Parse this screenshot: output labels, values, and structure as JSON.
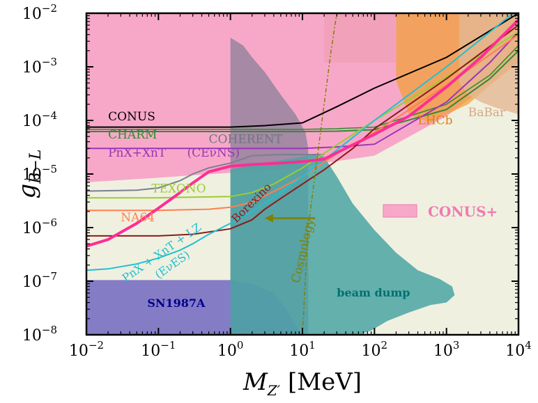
{
  "chart_data": {
    "type": "line",
    "xscale": "log",
    "yscale": "log",
    "xlim": [
      0.01,
      10000
    ],
    "ylim": [
      1e-08,
      0.01
    ],
    "xlabel": "M_{Z'} [MeV]",
    "ylabel": "g_{B-L}",
    "x_ticks": [
      {
        "value": 0.01,
        "base": "10",
        "exp": "−2"
      },
      {
        "value": 0.1,
        "base": "10",
        "exp": "−1"
      },
      {
        "value": 1,
        "base": "10",
        "exp": "0"
      },
      {
        "value": 10,
        "base": "10",
        "exp": "1"
      },
      {
        "value": 100,
        "base": "10",
        "exp": "2"
      },
      {
        "value": 1000,
        "base": "10",
        "exp": "3"
      },
      {
        "value": 10000,
        "base": "10",
        "exp": "4"
      }
    ],
    "y_ticks": [
      {
        "value": 1e-08,
        "base": "10",
        "exp": "−8"
      },
      {
        "value": 1e-07,
        "base": "10",
        "exp": "−7"
      },
      {
        "value": 1e-06,
        "base": "10",
        "exp": "−6"
      },
      {
        "value": 1e-05,
        "base": "10",
        "exp": "−5"
      },
      {
        "value": 0.0001,
        "base": "10",
        "exp": "−4"
      },
      {
        "value": 0.001,
        "base": "10",
        "exp": "−3"
      },
      {
        "value": 0.01,
        "base": "10",
        "exp": "−2"
      }
    ],
    "regions": [
      {
        "name": "excluded",
        "color": "#f0f0e0",
        "opacity": 1,
        "points": [
          [
            0.01,
            1e-08
          ],
          [
            10000,
            1e-08
          ],
          [
            10000,
            0.01
          ],
          [
            0.01,
            0.01
          ]
        ]
      },
      {
        "name": "pink-excluded",
        "color": "#f7a8c8",
        "opacity": 1,
        "points": [
          [
            0.01,
            0.01
          ],
          [
            10000,
            0.01
          ],
          [
            10000,
            0.0012
          ],
          [
            1000,
            0.00012
          ],
          [
            100,
            2.2e-05
          ],
          [
            20,
            1.6e-05
          ],
          [
            10,
            1.3e-05
          ],
          [
            3,
            1.15e-05
          ],
          [
            1,
            1.05e-05
          ],
          [
            0.3,
            9.5e-06
          ],
          [
            0.1,
            8.5e-06
          ],
          [
            0.01,
            7e-06
          ]
        ]
      },
      {
        "name": "coherent",
        "color": "#8a7f9a",
        "opacity": 0.75,
        "points": [
          [
            1,
            1e-08
          ],
          [
            1,
            0.0035
          ],
          [
            1.5,
            0.0025
          ],
          [
            2,
            0.0015
          ],
          [
            3,
            0.0008
          ],
          [
            5,
            0.0003
          ],
          [
            8,
            0.00013
          ],
          [
            11,
            6e-05
          ],
          [
            12,
            3e-05
          ],
          [
            12,
            1e-08
          ]
        ]
      },
      {
        "name": "sn1987a",
        "color": "#7b72c2",
        "opacity": 0.92,
        "points": [
          [
            0.01,
            1e-08
          ],
          [
            0.01,
            1.05e-07
          ],
          [
            1,
            1.05e-07
          ],
          [
            2,
            9e-08
          ],
          [
            4,
            6e-08
          ],
          [
            6,
            3e-08
          ],
          [
            8,
            1.5e-08
          ],
          [
            10,
            1e-08
          ]
        ]
      },
      {
        "name": "beam-dump",
        "color": "#4aa5a3",
        "opacity": 0.85,
        "points": [
          [
            1,
            1e-08
          ],
          [
            1,
            1.2e-05
          ],
          [
            2,
            1.5e-05
          ],
          [
            5,
            1.8e-05
          ],
          [
            10,
            2.1e-05
          ],
          [
            15,
            2.4e-05
          ],
          [
            20,
            2.1e-05
          ],
          [
            30,
            9e-06
          ],
          [
            50,
            2.8e-06
          ],
          [
            100,
            9e-07
          ],
          [
            200,
            3.4e-07
          ],
          [
            400,
            1.6e-07
          ],
          [
            800,
            1.1e-07
          ],
          [
            1200,
            8e-08
          ],
          [
            1300,
            5.5e-08
          ],
          [
            1000,
            4e-08
          ],
          [
            600,
            3.6e-08
          ],
          [
            300,
            2.6e-08
          ],
          [
            150,
            1.8e-08
          ],
          [
            90,
            1.2e-08
          ],
          [
            60,
            1e-08
          ]
        ]
      },
      {
        "name": "lhcb",
        "color": "#f0a030",
        "opacity": 0.7,
        "points": [
          [
            200,
            0.01
          ],
          [
            10000,
            0.01
          ],
          [
            10000,
            0.0012
          ],
          [
            4000,
            0.00045
          ],
          [
            2000,
            0.0002
          ],
          [
            1000,
            0.00013
          ],
          [
            600,
            9e-05
          ],
          [
            300,
            0.00013
          ],
          [
            200,
            0.00055
          ]
        ]
      },
      {
        "name": "babar",
        "color": "#e3b892",
        "opacity": 0.8,
        "points": [
          [
            1500,
            0.01
          ],
          [
            10000,
            0.01
          ],
          [
            10000,
            0.00013
          ],
          [
            7000,
            0.00015
          ],
          [
            5000,
            0.00017
          ],
          [
            3000,
            0.00022
          ],
          [
            2000,
            0.0003
          ],
          [
            1500,
            0.0005
          ]
        ]
      },
      {
        "name": "upper-pink-band",
        "color": "#f0a0b8",
        "opacity": 0.9,
        "points": [
          [
            20,
            0.01
          ],
          [
            200,
            0.01
          ],
          [
            200,
            0.0012
          ],
          [
            100,
            0.0012
          ],
          [
            50,
            0.0012
          ],
          [
            20,
            0.0012
          ]
        ]
      }
    ],
    "series": [
      {
        "name": "CONUS",
        "color": "#000000",
        "width": 2,
        "points": [
          [
            0.01,
            7.5e-05
          ],
          [
            0.1,
            7.5e-05
          ],
          [
            1,
            7.5e-05
          ],
          [
            3,
            8e-05
          ],
          [
            10,
            9e-05
          ],
          [
            30,
            0.00018
          ],
          [
            100,
            0.0004
          ],
          [
            1000,
            0.0015
          ],
          [
            10000,
            0.01
          ]
        ]
      },
      {
        "name": "CHARM",
        "color": "#2e8b2e",
        "width": 2,
        "points": [
          [
            0.01,
            6.2e-05
          ],
          [
            0.1,
            6.2e-05
          ],
          [
            1,
            6.2e-05
          ],
          [
            10,
            6.2e-05
          ],
          [
            30,
            6.3e-05
          ],
          [
            100,
            6.7e-05
          ],
          [
            1000,
            0.00016
          ],
          [
            4000,
            0.0006
          ],
          [
            10000,
            0.002
          ]
        ]
      },
      {
        "name": "CHARM-2",
        "color": "#2e8b2e",
        "width": 1.5,
        "points": [
          [
            0.01,
            6.8e-05
          ],
          [
            0.1,
            6.8e-05
          ],
          [
            1,
            6.8e-05
          ],
          [
            10,
            6.8e-05
          ],
          [
            30,
            7e-05
          ],
          [
            100,
            7.5e-05
          ],
          [
            1000,
            0.0002
          ],
          [
            4000,
            0.0007
          ],
          [
            10000,
            0.0025
          ]
        ]
      },
      {
        "name": "PnX+XnT",
        "color": "#9b35b8",
        "width": 2,
        "points": [
          [
            0.01,
            3e-05
          ],
          [
            0.1,
            3e-05
          ],
          [
            1,
            3e-05
          ],
          [
            10,
            3e-05
          ],
          [
            30,
            3.2e-05
          ],
          [
            100,
            3.6e-05
          ],
          [
            1000,
            0.00022
          ],
          [
            4000,
            0.0012
          ],
          [
            10000,
            0.0045
          ]
        ]
      },
      {
        "name": "COHERENT",
        "color": "#7a7f90",
        "width": 2,
        "points": [
          [
            0.01,
            4.8e-06
          ],
          [
            0.05,
            5e-06
          ],
          [
            0.1,
            5.5e-06
          ],
          [
            0.2,
            7.5e-06
          ],
          [
            0.3,
            1e-05
          ],
          [
            0.5,
            1.3e-05
          ],
          [
            1,
            1.6e-05
          ],
          [
            2,
            2.2e-05
          ],
          [
            5,
            2.3e-05
          ],
          [
            10,
            2.3e-05
          ],
          [
            20,
            2.3e-05
          ]
        ]
      },
      {
        "name": "TEXONO",
        "color": "#9acd32",
        "width": 2,
        "points": [
          [
            0.01,
            3.6e-06
          ],
          [
            0.1,
            3.6e-06
          ],
          [
            0.3,
            3.7e-06
          ],
          [
            1,
            3.8e-06
          ],
          [
            2,
            4.5e-06
          ],
          [
            4,
            6.5e-06
          ],
          [
            10,
            1.3e-05
          ],
          [
            30,
            3.5e-05
          ],
          [
            100,
            0.0001
          ],
          [
            1000,
            0.00065
          ],
          [
            10000,
            0.0045
          ]
        ]
      },
      {
        "name": "NA64",
        "color": "#ff7f50",
        "width": 2,
        "points": [
          [
            0.01,
            2.1e-06
          ],
          [
            0.1,
            2.1e-06
          ],
          [
            0.5,
            2.2e-06
          ],
          [
            1,
            2.4e-06
          ],
          [
            2,
            3e-06
          ],
          [
            5,
            5.5e-06
          ],
          [
            10,
            9e-06
          ],
          [
            30,
            2.4e-05
          ],
          [
            100,
            6e-05
          ],
          [
            1000,
            0.00045
          ],
          [
            10000,
            0.004
          ]
        ]
      },
      {
        "name": "Borexino",
        "color": "#8b1a1a",
        "width": 2,
        "points": [
          [
            0.01,
            7e-07
          ],
          [
            0.1,
            7e-07
          ],
          [
            0.3,
            7.5e-07
          ],
          [
            1,
            9.5e-07
          ],
          [
            2,
            1.4e-06
          ],
          [
            3,
            2.2e-06
          ],
          [
            5,
            3.5e-06
          ],
          [
            10,
            6.5e-06
          ],
          [
            20,
            1.2e-05
          ],
          [
            50,
            3e-05
          ],
          [
            100,
            7e-05
          ],
          [
            1000,
            0.0006
          ],
          [
            10000,
            0.006
          ]
        ]
      },
      {
        "name": "PnX+XnT+LZ",
        "color": "#20c0d0",
        "width": 2,
        "points": [
          [
            0.01,
            1.6e-07
          ],
          [
            0.02,
            1.7e-07
          ],
          [
            0.05,
            2.1e-07
          ],
          [
            0.1,
            2.7e-07
          ],
          [
            0.2,
            3.8e-07
          ],
          [
            0.3,
            5e-07
          ],
          [
            0.5,
            7.5e-07
          ],
          [
            1,
            1.2e-06
          ],
          [
            2,
            2e-06
          ],
          [
            5,
            4.5e-06
          ],
          [
            10,
            9e-06
          ],
          [
            30,
            2.8e-05
          ],
          [
            100,
            0.0001
          ],
          [
            1000,
            0.001
          ],
          [
            10000,
            0.012
          ]
        ]
      },
      {
        "name": "CONUS+",
        "color": "#ff2d95",
        "width": 4,
        "points": [
          [
            0.01,
            4.5e-07
          ],
          [
            0.02,
            6e-07
          ],
          [
            0.05,
            1.2e-06
          ],
          [
            0.1,
            2.3e-06
          ],
          [
            0.2,
            4.5e-06
          ],
          [
            0.3,
            6.8e-06
          ],
          [
            0.5,
            1.1e-05
          ],
          [
            1,
            1.4e-05
          ],
          [
            2,
            1.5e-05
          ],
          [
            5,
            1.6e-05
          ],
          [
            10,
            1.7e-05
          ],
          [
            20,
            1.9e-05
          ],
          [
            50,
            3.5e-05
          ],
          [
            100,
            5.5e-05
          ],
          [
            300,
            0.00012
          ],
          [
            1000,
            0.00042
          ],
          [
            3000,
            0.0015
          ],
          [
            10000,
            0.0075
          ]
        ]
      },
      {
        "name": "Cosmology",
        "color": "#808000",
        "width": 1.5,
        "dash": "6,3,2,3",
        "points": [
          [
            10,
            1e-08
          ],
          [
            12,
            1e-06
          ],
          [
            15,
            1e-05
          ],
          [
            20,
            0.0002
          ],
          [
            25,
            0.002
          ],
          [
            30,
            0.01
          ]
        ]
      }
    ],
    "texts": [
      {
        "name": "label-conus",
        "text": "CONUS",
        "color": "#000000",
        "x": 0.02,
        "y": 0.0001,
        "size": 17
      },
      {
        "name": "label-charm",
        "text": "CHARM",
        "color": "#2e8b2e",
        "x": 0.02,
        "y": 4.6e-05,
        "size": 17
      },
      {
        "name": "label-pnx-xnt",
        "text": "PnX+XnT",
        "color": "#9b35b8",
        "x": 0.02,
        "y": 2.1e-05,
        "size": 17
      },
      {
        "name": "label-cevns",
        "text": "(CEνNS)",
        "color": "#9b35b8",
        "x": 0.25,
        "y": 2.1e-05,
        "size": 17
      },
      {
        "name": "label-coherent",
        "text": "COHERENT",
        "color": "#707480",
        "x": 0.5,
        "y": 3.8e-05,
        "size": 17
      },
      {
        "name": "label-texono",
        "text": "TEXONO",
        "color": "#9acd32",
        "x": 0.08,
        "y": 4.5e-06,
        "size": 17
      },
      {
        "name": "label-na64",
        "text": "NA64",
        "color": "#ff7f50",
        "x": 0.03,
        "y": 1.3e-06,
        "size": 17
      },
      {
        "name": "label-sn1987a",
        "text": "SN1987A",
        "color": "#00008b",
        "x": 0.07,
        "y": 3.3e-08,
        "size": 16,
        "bold": true
      },
      {
        "name": "label-beam-dump",
        "text": "beam dump",
        "color": "#007070",
        "x": 30,
        "y": 5.2e-08,
        "size": 16,
        "bold": true
      },
      {
        "name": "label-lhcb",
        "text": "LHCb",
        "color": "#e08010",
        "x": 400,
        "y": 8.5e-05,
        "size": 17
      },
      {
        "name": "label-babar",
        "text": "BaBar",
        "color": "#d4a880",
        "x": 2000,
        "y": 0.00012,
        "size": 17
      }
    ],
    "rotated_texts": [
      {
        "name": "label-borexino",
        "text": "Borexino",
        "color": "#8b1a1a",
        "x": 1.2,
        "y": 1.2e-06,
        "angle": -45,
        "size": 16
      },
      {
        "name": "label-pnx-xnt-lz",
        "text": "PnX + XnT + LZ",
        "color": "#20c0d0",
        "x": 0.035,
        "y": 9.5e-08,
        "angle": -35,
        "size": 16
      },
      {
        "name": "label-enues",
        "text": "(EνES)",
        "color": "#20c0d0",
        "x": 0.1,
        "y": 1.1e-07,
        "angle": -35,
        "size": 16
      },
      {
        "name": "label-cosmology",
        "text": "Cosmology",
        "color": "#808000",
        "x": 9,
        "y": 9e-08,
        "angle": -77,
        "size": 17
      }
    ],
    "legend": {
      "label": "CONUS+",
      "color": "#f7a8c8",
      "edge": "#f07ab0",
      "text_color": "#f07ab0",
      "position": "right"
    },
    "arrow": {
      "color": "#808000",
      "from": [
        15,
        1.5e-06
      ],
      "to": [
        3,
        1.5e-06
      ]
    }
  }
}
